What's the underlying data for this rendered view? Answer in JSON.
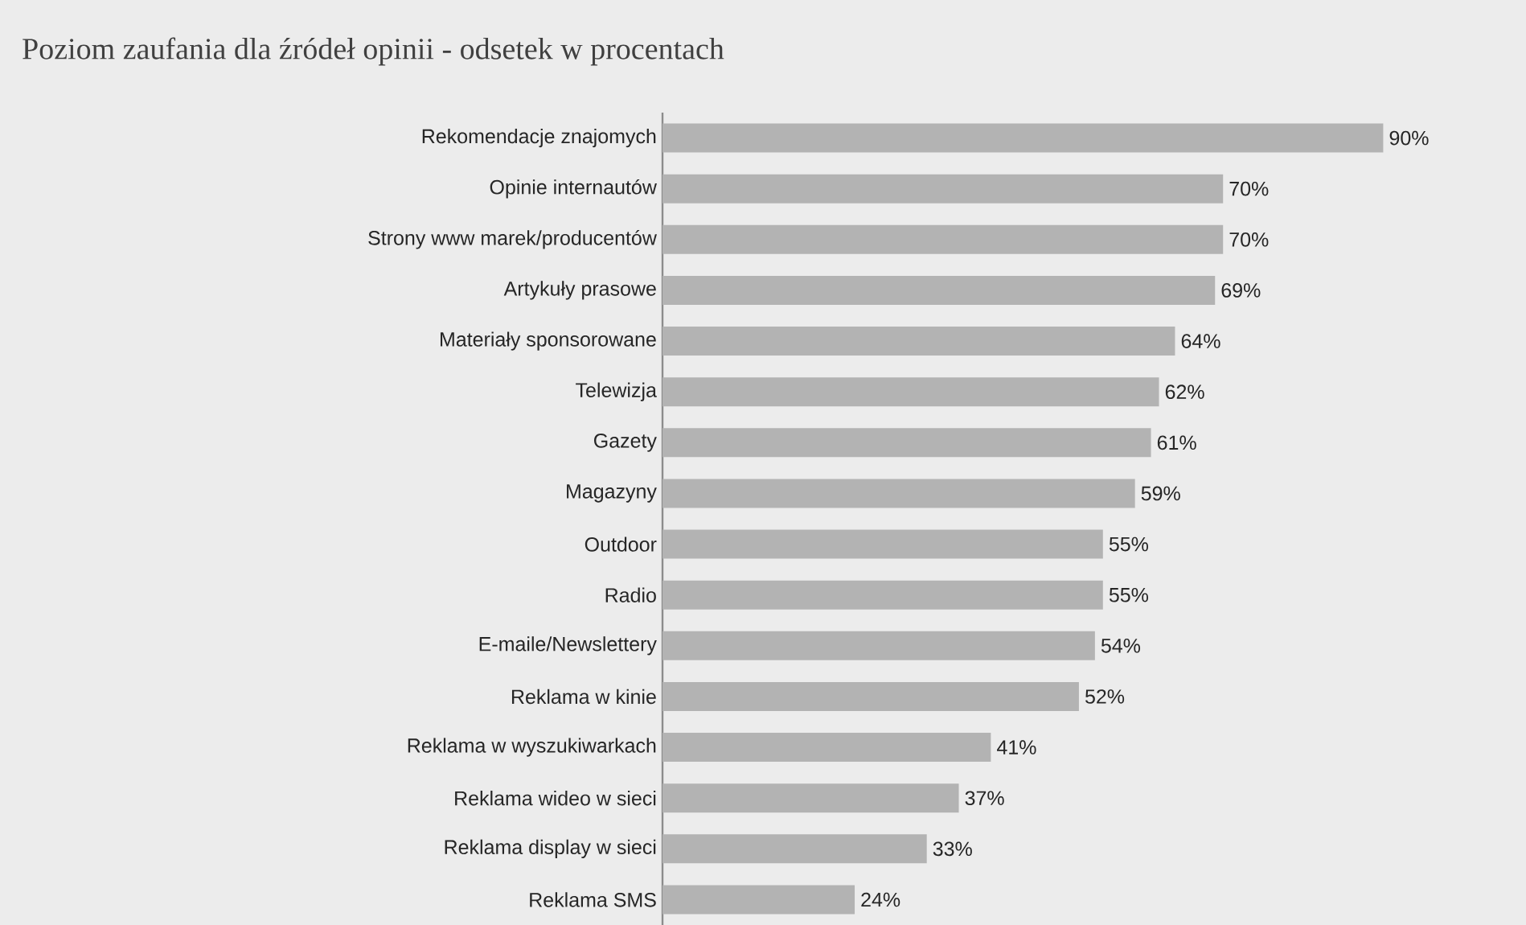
{
  "chart_data": {
    "type": "bar",
    "orientation": "horizontal",
    "title": "Poziom zaufania dla źródeł opinii - odsetek w procentach",
    "categories": [
      "Rekomendacje znajomych",
      "Opinie internautów",
      "Strony www marek/producentów",
      "Artykuły prasowe",
      "Materiały sponsorowane",
      "Telewizja",
      "Gazety",
      "Magazyny",
      "Outdoor",
      "Radio",
      "E-maile/Newslettery",
      "Reklama w kinie",
      "Reklama w wyszukiwarkach",
      "Reklama wideo w sieci",
      "Reklama display w sieci",
      "Reklama SMS"
    ],
    "values": [
      90,
      70,
      70,
      69,
      64,
      62,
      61,
      59,
      55,
      55,
      54,
      52,
      41,
      37,
      33,
      24
    ],
    "value_labels": [
      "90%",
      "70%",
      "70%",
      "69%",
      "64%",
      "62%",
      "61%",
      "59%",
      "55%",
      "55%",
      "54%",
      "52%",
      "41%",
      "37%",
      "33%",
      "24%"
    ],
    "color": "#b3b3b3"
  }
}
